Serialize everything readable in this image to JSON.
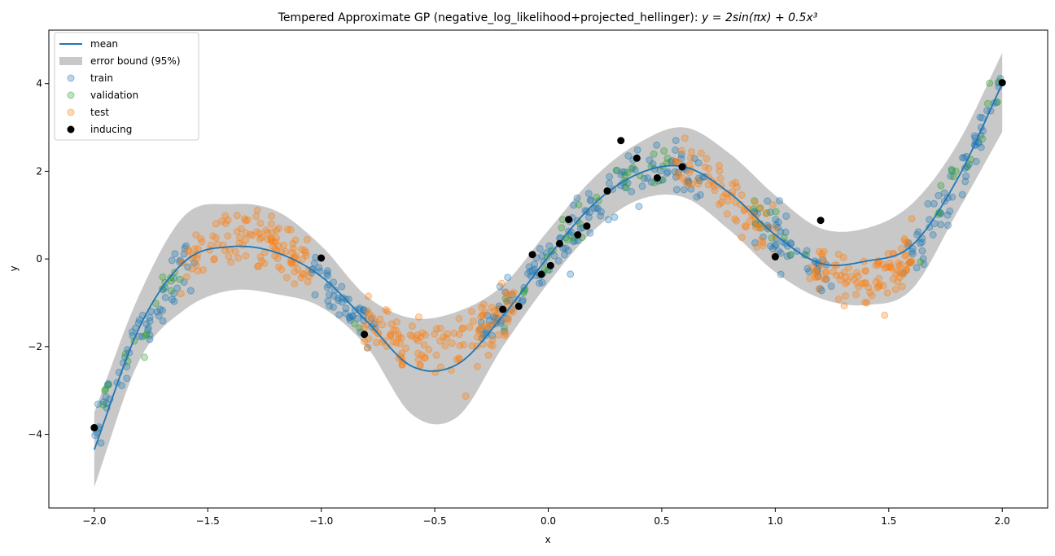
{
  "chart_data": {
    "type": "scatter",
    "title": "Tempered Approximate GP (negative_log_likelihood+projected_hellinger): y = 2sin(πx) + 0.5x³",
    "xlabel": "x",
    "ylabel": "y",
    "xlim": [
      -2.2,
      2.2
    ],
    "ylim": [
      -5.68,
      5.22
    ],
    "xticks": [
      -2.0,
      -1.5,
      -1.0,
      -0.5,
      0.0,
      0.5,
      1.0,
      1.5,
      2.0
    ],
    "xtick_labels": [
      "−2.0",
      "−1.5",
      "−1.0",
      "−0.5",
      "0.0",
      "0.5",
      "1.0",
      "1.5",
      "2.0"
    ],
    "yticks": [
      -4,
      -2,
      0,
      2,
      4
    ],
    "ytick_labels": [
      "−4",
      "−2",
      "0",
      "2",
      "4"
    ],
    "grid": false,
    "legend_position": "top-left",
    "legend": [
      {
        "label": "mean",
        "kind": "line",
        "color": "#1f77b4"
      },
      {
        "label": "error bound (95%)",
        "kind": "band",
        "color": "#c8c8c8"
      },
      {
        "label": "train",
        "kind": "marker",
        "color": "#1f77b4",
        "alpha": 0.3
      },
      {
        "label": "validation",
        "kind": "marker",
        "color": "#2ca02c",
        "alpha": 0.3
      },
      {
        "label": "test",
        "kind": "marker",
        "color": "#ff7f0e",
        "alpha": 0.3
      },
      {
        "label": "inducing",
        "kind": "marker",
        "color": "#000000",
        "alpha": 1.0
      }
    ],
    "mean": {
      "x": [
        -2.0,
        -1.8,
        -1.6,
        -1.4,
        -1.2,
        -1.0,
        -0.8,
        -0.6,
        -0.4,
        -0.2,
        0.0,
        0.2,
        0.4,
        0.6,
        0.8,
        1.0,
        1.2,
        1.4,
        1.6,
        1.8,
        2.0
      ],
      "y": [
        -4.35,
        -1.55,
        -0.05,
        0.28,
        0.15,
        -0.4,
        -1.42,
        -2.45,
        -2.4,
        -1.3,
        0.05,
        1.25,
        1.95,
        2.1,
        1.5,
        0.55,
        -0.1,
        -0.05,
        0.3,
        1.8,
        4.0
      ]
    },
    "band": {
      "x": [
        -2.0,
        -1.8,
        -1.6,
        -1.4,
        -1.2,
        -1.0,
        -0.8,
        -0.6,
        -0.4,
        -0.2,
        0.0,
        0.2,
        0.4,
        0.6,
        0.8,
        1.0,
        1.2,
        1.4,
        1.6,
        1.8,
        2.0
      ],
      "lower": [
        -5.2,
        -2.3,
        -1.15,
        -0.72,
        -0.8,
        -1.1,
        -2.0,
        -3.55,
        -3.6,
        -2.0,
        -0.55,
        0.65,
        1.35,
        1.4,
        0.65,
        -0.3,
        -0.9,
        -1.05,
        -0.7,
        1.05,
        2.9
      ],
      "upper": [
        -3.5,
        -0.8,
        1.0,
        1.25,
        1.1,
        0.3,
        -0.85,
        -1.35,
        -1.2,
        -0.6,
        0.65,
        1.85,
        2.65,
        3.0,
        2.4,
        1.45,
        0.7,
        0.7,
        1.25,
        2.6,
        4.7
      ]
    },
    "inducing": {
      "x": [
        -2.0,
        -1.0,
        -0.81,
        -0.2,
        -0.13,
        -0.07,
        -0.03,
        0.01,
        0.05,
        0.09,
        0.13,
        0.17,
        0.26,
        0.32,
        0.39,
        0.48,
        0.59,
        1.0,
        1.2,
        2.0
      ],
      "y": [
        -3.85,
        0.02,
        -1.72,
        -1.15,
        -1.08,
        0.1,
        -0.35,
        -0.15,
        0.35,
        0.9,
        0.55,
        0.75,
        1.55,
        2.7,
        2.3,
        1.85,
        2.1,
        0.05,
        0.88,
        4.02
      ]
    },
    "scatter_sets": [
      {
        "name": "train",
        "color": "#1f77b4",
        "count": 380,
        "noise": 0.28,
        "ranges": [
          [
            -2.0,
            -1.55
          ],
          [
            -1.05,
            -0.75
          ],
          [
            -0.3,
            0.7
          ],
          [
            0.9,
            1.25
          ],
          [
            1.55,
            2.0
          ]
        ]
      },
      {
        "name": "validation",
        "color": "#2ca02c",
        "count": 80,
        "noise": 0.28,
        "ranges": [
          [
            -2.0,
            -1.55
          ],
          [
            -0.9,
            -0.8
          ],
          [
            -0.2,
            0.55
          ],
          [
            0.9,
            1.2
          ],
          [
            1.6,
            2.0
          ]
        ]
      },
      {
        "name": "test",
        "color": "#ff7f0e",
        "count": 430,
        "noise": 0.32,
        "ranges": [
          [
            -1.62,
            -1.05
          ],
          [
            -0.82,
            -0.15
          ],
          [
            0.55,
            1.0
          ],
          [
            1.15,
            1.62
          ]
        ]
      }
    ]
  }
}
